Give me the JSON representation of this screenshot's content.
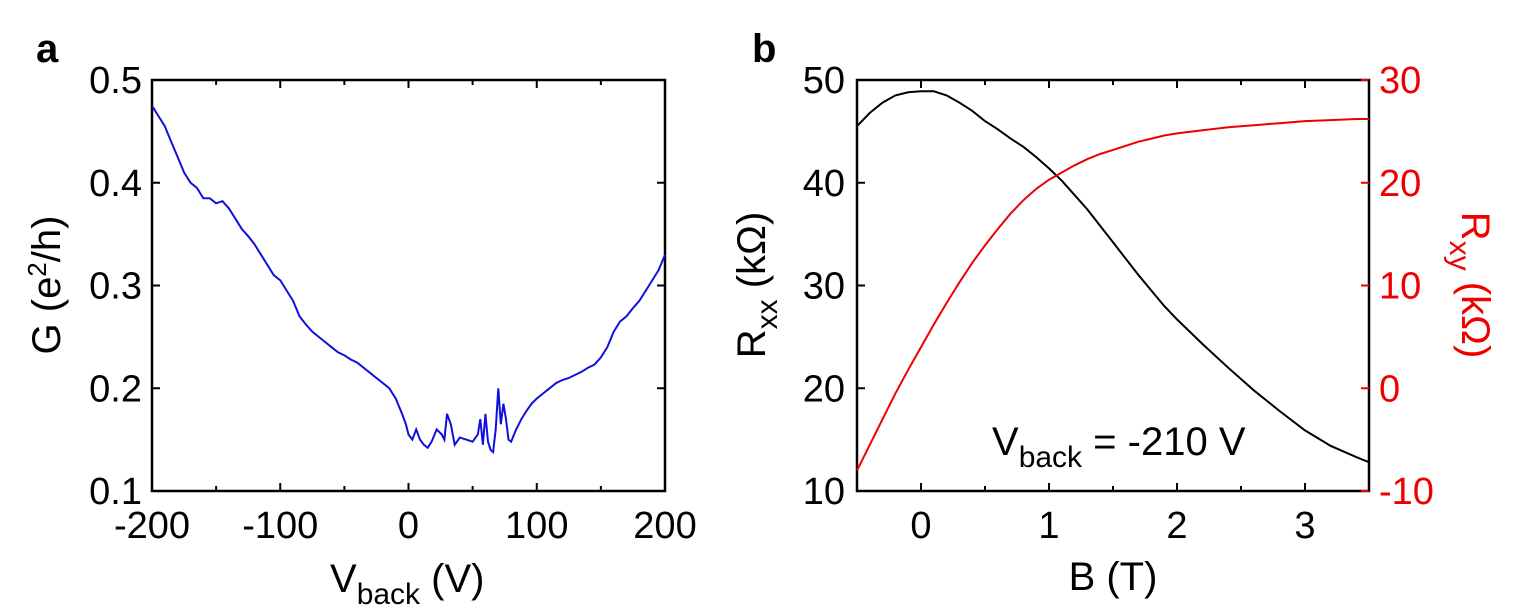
{
  "chart_data": [
    {
      "panel": "a",
      "type": "line",
      "xlabel": {
        "main": "V",
        "sub": "back",
        "unit": " (V)"
      },
      "ylabel": {
        "pre": "G (e",
        "sup": "2",
        "post": "/h)"
      },
      "xlim": [
        -200,
        200
      ],
      "ylim": [
        0.1,
        0.5
      ],
      "xticks": [
        "-200",
        "-100",
        "0",
        "100",
        "200"
      ],
      "yticks": [
        "0.1",
        "0.2",
        "0.3",
        "0.4",
        "0.5"
      ],
      "series": [
        {
          "color": "#1010dd",
          "x": [
            -200,
            -195,
            -190,
            -185,
            -180,
            -175,
            -170,
            -165,
            -160,
            -155,
            -150,
            -145,
            -140,
            -135,
            -130,
            -125,
            -120,
            -115,
            -110,
            -105,
            -100,
            -95,
            -90,
            -85,
            -80,
            -75,
            -70,
            -65,
            -60,
            -55,
            -50,
            -45,
            -40,
            -35,
            -30,
            -25,
            -20,
            -15,
            -10,
            -5,
            -2,
            0,
            3,
            6,
            9,
            12,
            15,
            18,
            22,
            26,
            28,
            30,
            33,
            36,
            40,
            45,
            50,
            54,
            56,
            58,
            60,
            62,
            64,
            66,
            68,
            70,
            72,
            74,
            76,
            78,
            80,
            84,
            88,
            92,
            96,
            100,
            105,
            110,
            115,
            120,
            125,
            130,
            135,
            140,
            145,
            150,
            155,
            160,
            165,
            170,
            175,
            180,
            185,
            190,
            195,
            200
          ],
          "y": [
            0.475,
            0.465,
            0.455,
            0.44,
            0.425,
            0.41,
            0.4,
            0.395,
            0.385,
            0.385,
            0.38,
            0.382,
            0.375,
            0.365,
            0.355,
            0.348,
            0.34,
            0.33,
            0.32,
            0.31,
            0.305,
            0.295,
            0.285,
            0.27,
            0.262,
            0.255,
            0.25,
            0.245,
            0.24,
            0.235,
            0.232,
            0.228,
            0.225,
            0.22,
            0.215,
            0.21,
            0.205,
            0.2,
            0.19,
            0.175,
            0.165,
            0.155,
            0.15,
            0.16,
            0.15,
            0.145,
            0.142,
            0.148,
            0.16,
            0.155,
            0.15,
            0.175,
            0.165,
            0.145,
            0.152,
            0.15,
            0.148,
            0.155,
            0.17,
            0.145,
            0.175,
            0.148,
            0.14,
            0.138,
            0.16,
            0.2,
            0.165,
            0.185,
            0.17,
            0.15,
            0.148,
            0.16,
            0.17,
            0.178,
            0.185,
            0.19,
            0.195,
            0.2,
            0.205,
            0.208,
            0.21,
            0.213,
            0.216,
            0.22,
            0.223,
            0.23,
            0.24,
            0.255,
            0.265,
            0.27,
            0.278,
            0.285,
            0.295,
            0.305,
            0.315,
            0.33
          ]
        }
      ]
    },
    {
      "panel": "b",
      "type": "line",
      "xlabel": "B (T)",
      "ylabel": {
        "main": "R",
        "sub": "xx",
        "unit": " (kΩ)"
      },
      "ylabel_right": {
        "main": "R",
        "sub": "xy",
        "unit": " (kΩ)"
      },
      "xlim": [
        -0.5,
        3.5
      ],
      "ylim": [
        10,
        50
      ],
      "ylim_right": [
        -10,
        30
      ],
      "xticks": [
        "0",
        "1",
        "2",
        "3"
      ],
      "yticks": [
        "10",
        "20",
        "30",
        "40",
        "50"
      ],
      "yticks_right": [
        "-10",
        "0",
        "10",
        "20",
        "30"
      ],
      "annotation": {
        "main": "V",
        "sub": "back",
        "rest": " = -210 V"
      },
      "series": [
        {
          "axis": "left",
          "color": "#000000",
          "x": [
            -0.5,
            -0.4,
            -0.3,
            -0.2,
            -0.1,
            0.0,
            0.1,
            0.2,
            0.3,
            0.4,
            0.5,
            0.6,
            0.7,
            0.8,
            0.9,
            1.0,
            1.1,
            1.2,
            1.3,
            1.4,
            1.5,
            1.6,
            1.7,
            1.8,
            1.9,
            2.0,
            2.2,
            2.4,
            2.6,
            2.8,
            3.0,
            3.2,
            3.4,
            3.5
          ],
          "y": [
            45.5,
            46.8,
            47.8,
            48.5,
            48.8,
            48.9,
            48.9,
            48.5,
            47.8,
            47.0,
            46.0,
            45.2,
            44.3,
            43.5,
            42.5,
            41.4,
            40.2,
            38.8,
            37.4,
            35.8,
            34.2,
            32.6,
            31.0,
            29.5,
            28.0,
            26.7,
            24.3,
            22.0,
            19.8,
            17.8,
            15.9,
            14.4,
            13.3,
            12.8
          ]
        },
        {
          "axis": "right",
          "color": "#ee0000",
          "x": [
            -0.5,
            -0.4,
            -0.3,
            -0.2,
            -0.1,
            0.0,
            0.1,
            0.2,
            0.3,
            0.4,
            0.5,
            0.6,
            0.7,
            0.8,
            0.9,
            1.0,
            1.1,
            1.2,
            1.3,
            1.4,
            1.5,
            1.6,
            1.7,
            1.8,
            1.9,
            2.0,
            2.2,
            2.4,
            2.6,
            2.8,
            3.0,
            3.2,
            3.4,
            3.5
          ],
          "y": [
            -8.0,
            -5.5,
            -3.0,
            -0.5,
            1.8,
            4.0,
            6.2,
            8.3,
            10.3,
            12.2,
            13.9,
            15.5,
            17.0,
            18.3,
            19.4,
            20.3,
            21.0,
            21.7,
            22.3,
            22.8,
            23.2,
            23.6,
            24.0,
            24.3,
            24.6,
            24.8,
            25.1,
            25.4,
            25.6,
            25.8,
            26.0,
            26.1,
            26.2,
            26.2
          ]
        }
      ]
    }
  ]
}
